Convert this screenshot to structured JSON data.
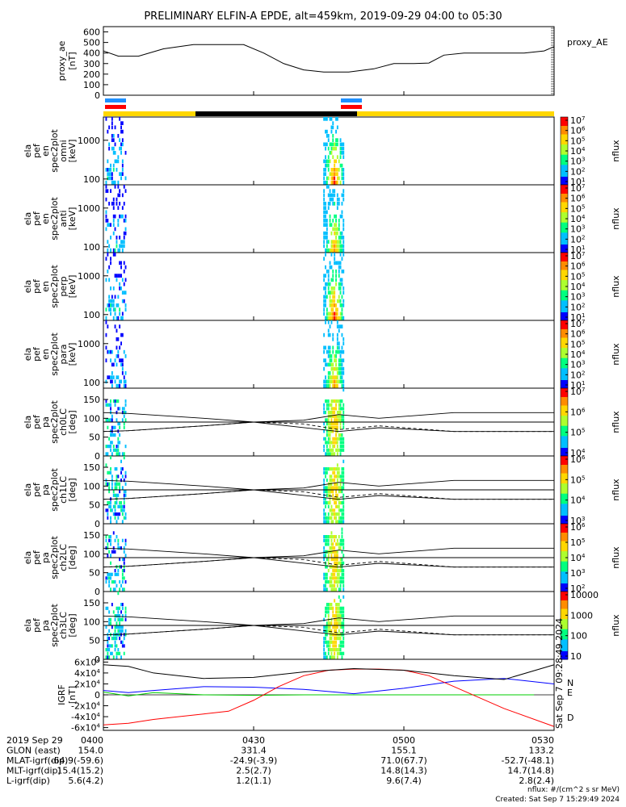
{
  "title": "PRELIMINARY ELFIN-A EPDE, alt=459km, 2019-09-29 04:00 to 05:30",
  "time_labels": [
    "0400",
    "0430",
    "0500",
    "0530"
  ],
  "ephem": [
    {
      "label": "2019 Sep 29",
      "values": [
        "",
        "",
        "",
        ""
      ]
    },
    {
      "label": "GLON (east)",
      "values": [
        "154.0",
        "331.4",
        "155.1",
        "133.2"
      ]
    },
    {
      "label": "MLAT-igrf(dip)",
      "values": [
        "-64.9(-59.6)",
        "-24.9(-3.9)",
        "71.0(67.7)",
        "-52.7(-48.1)"
      ]
    },
    {
      "label": "MLT-igrf(dip)",
      "values": [
        "15.4(15.2)",
        "2.5(2.7)",
        "14.8(14.3)",
        "14.7(14.8)"
      ]
    },
    {
      "label": "L-igrf(dip)",
      "values": [
        "5.6(4.2)",
        "1.2(1.1)",
        "9.6(7.4)",
        "2.8(2.4)"
      ]
    }
  ],
  "footer": {
    "units": "nflux: #/(cm^2 s sr MeV)",
    "created": "Created: Sat Sep  7 15:29:49 2024",
    "side_stamp": "Sat Sep  7 09:28:49 2024"
  },
  "colors": {
    "N": "#0000ff",
    "E": "#00cc00",
    "D": "#ff0000",
    "bar_yellow": "#ffd700",
    "bar_black": "#000000",
    "blue_mark": "#1e90ff",
    "red_mark": "#ff0000"
  },
  "chart_data": [
    {
      "type": "line",
      "ylabel": "proxy_ae [nT]",
      "legend": "proxy_AE",
      "yticks": [
        "0",
        "100",
        "200",
        "300",
        "400",
        "500",
        "600"
      ],
      "ylim": [
        0,
        650
      ],
      "x_minutes": [
        0,
        3,
        7,
        12,
        18,
        22,
        28,
        32,
        36,
        40,
        44,
        49,
        54,
        58,
        62,
        65,
        68,
        72,
        76,
        80,
        84,
        88,
        90
      ],
      "values": [
        420,
        370,
        370,
        440,
        480,
        480,
        480,
        400,
        300,
        240,
        220,
        220,
        250,
        300,
        300,
        305,
        380,
        400,
        400,
        400,
        400,
        420,
        460
      ]
    },
    {
      "type": "heatmap",
      "ylabel": [
        "ela",
        "pef",
        "en",
        "spec2plot",
        "omni",
        "[keV]"
      ],
      "yticks": [
        "100",
        "1000"
      ],
      "cbar_label": "nflux",
      "cbar_ticks": [
        "10^1",
        "10^2",
        "10^3",
        "10^4",
        "10^5",
        "10^6",
        "10^7"
      ]
    },
    {
      "type": "heatmap",
      "ylabel": [
        "ela",
        "pef",
        "en",
        "spec2plot",
        "anti",
        "[keV]"
      ],
      "yticks": [
        "100",
        "1000"
      ],
      "cbar_label": "nflux",
      "cbar_ticks": [
        "10^1",
        "10^2",
        "10^3",
        "10^4",
        "10^5",
        "10^6",
        "10^7"
      ]
    },
    {
      "type": "heatmap",
      "ylabel": [
        "ela",
        "pef",
        "en",
        "spec2plot",
        "perp",
        "[keV]"
      ],
      "yticks": [
        "100",
        "1000"
      ],
      "cbar_label": "nflux",
      "cbar_ticks": [
        "10^1",
        "10^2",
        "10^3",
        "10^4",
        "10^5",
        "10^6",
        "10^7"
      ]
    },
    {
      "type": "heatmap",
      "ylabel": [
        "ela",
        "pef",
        "en",
        "spec2plot",
        "para",
        "[keV]"
      ],
      "yticks": [
        "100",
        "1000"
      ],
      "cbar_label": "nflux",
      "cbar_ticks": [
        "10^1",
        "10^2",
        "10^3",
        "10^4",
        "10^5",
        "10^6",
        "10^7"
      ]
    },
    {
      "type": "heatmap",
      "ylabel": [
        "ela",
        "pef",
        "pa",
        "spec2plot",
        "ch0LC",
        "[deg]"
      ],
      "yticks": [
        "0",
        "50",
        "100",
        "150"
      ],
      "cbar_label": "nflux",
      "cbar_ticks": [
        "10^4",
        "10^5",
        "10^6",
        "10^7"
      ]
    },
    {
      "type": "heatmap",
      "ylabel": [
        "ela",
        "pef",
        "pa",
        "spec2plot",
        "ch1LC",
        "[deg]"
      ],
      "yticks": [
        "0",
        "50",
        "100",
        "150"
      ],
      "cbar_label": "nflux",
      "cbar_ticks": [
        "10^3",
        "10^4",
        "10^5",
        "10^6"
      ]
    },
    {
      "type": "heatmap",
      "ylabel": [
        "ela",
        "pef",
        "pa",
        "spec2plot",
        "ch2LC",
        "[deg]"
      ],
      "yticks": [
        "0",
        "50",
        "100",
        "150"
      ],
      "cbar_label": "nflux",
      "cbar_ticks": [
        "10^2",
        "10^3",
        "10^4",
        "10^5",
        "10^6"
      ]
    },
    {
      "type": "heatmap",
      "ylabel": [
        "ela",
        "pef",
        "pa",
        "spec2plot",
        "ch3LC",
        "[deg]"
      ],
      "yticks": [
        "0",
        "50",
        "100",
        "150"
      ],
      "cbar_label": "nflux",
      "cbar_ticks": [
        "10",
        "100",
        "1000",
        "10000"
      ]
    },
    {
      "type": "line",
      "ylabel": "IGRF [nT]",
      "yticks": [
        "-6x10^4",
        "-4x10^4",
        "-2x10^4",
        "0",
        "2x10^4",
        "4x10^4",
        "6x10^4"
      ],
      "ylim": [
        -65000,
        65000
      ],
      "series": [
        {
          "name": "N",
          "x": [
            0,
            5,
            10,
            20,
            30,
            40,
            50,
            60,
            70,
            80,
            90
          ],
          "values": [
            8000,
            4000,
            8000,
            15000,
            14000,
            10000,
            2000,
            12000,
            25000,
            30000,
            20000
          ]
        },
        {
          "name": "E",
          "x": [
            0,
            5,
            10,
            20,
            30,
            40,
            50,
            60,
            70,
            80,
            86
          ],
          "values": [
            5000,
            -2000,
            4000,
            0,
            -1000,
            0,
            0,
            0,
            0,
            0,
            0
          ]
        },
        {
          "name": "D",
          "x": [
            0,
            5,
            10,
            20,
            25,
            30,
            35,
            40,
            45,
            50,
            55,
            60,
            65,
            70,
            80,
            90
          ],
          "values": [
            -55000,
            -52000,
            -45000,
            -35000,
            -30000,
            -10000,
            15000,
            35000,
            45000,
            47000,
            47000,
            45000,
            35000,
            15000,
            -25000,
            -58000
          ]
        },
        {
          "name": "",
          "x": [
            0,
            5,
            10,
            20,
            30,
            40,
            50,
            60,
            70,
            80,
            90
          ],
          "values": [
            55000,
            52000,
            40000,
            30000,
            32000,
            42000,
            48000,
            45000,
            35000,
            28000,
            55000
          ]
        }
      ]
    }
  ]
}
